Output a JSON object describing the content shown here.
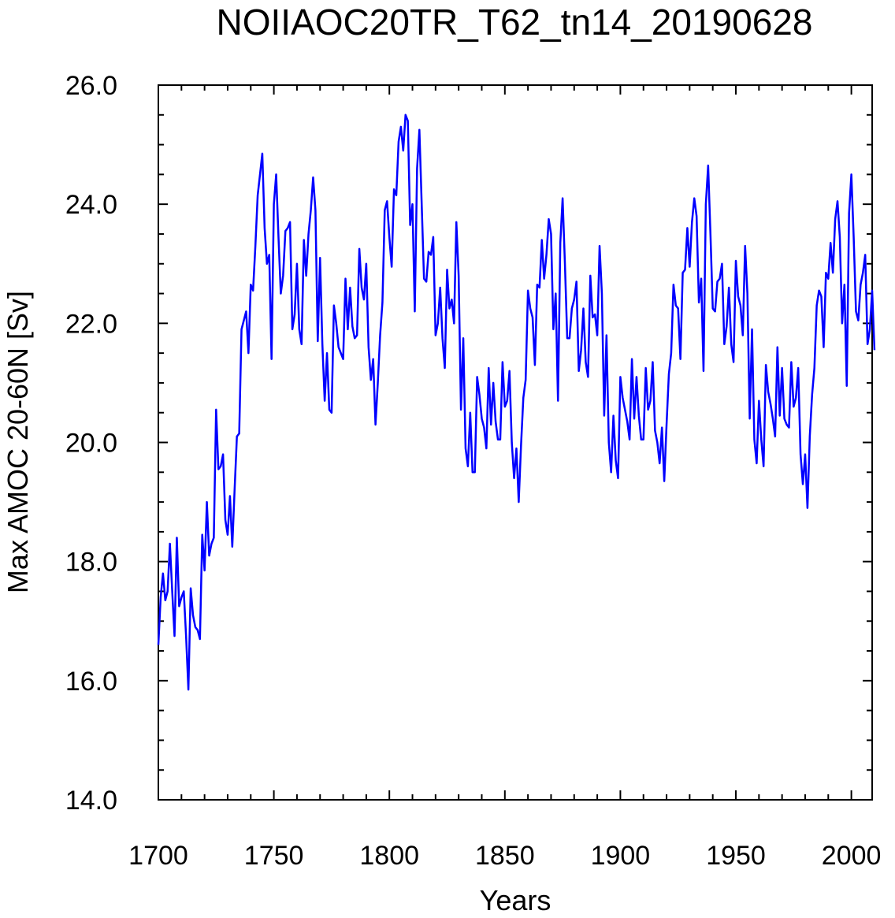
{
  "chart_data": {
    "type": "line",
    "title": "NOIIAOC20TR_T62_tn14_20190628",
    "xlabel": "Years",
    "ylabel": "Max AMOC 20-60N [Sv]",
    "xlim": [
      1700,
      2009
    ],
    "ylim": [
      14.0,
      26.0
    ],
    "x_ticks": [
      1700,
      1750,
      1800,
      1850,
      1900,
      1950,
      2000
    ],
    "x_tick_labels": [
      "1700",
      "1750",
      "1800",
      "1850",
      "1900",
      "1950",
      "2000"
    ],
    "y_ticks": [
      14,
      16,
      18,
      20,
      22,
      24,
      26
    ],
    "y_tick_labels": [
      "14.0",
      "16.0",
      "18.0",
      "20.0",
      "22.0",
      "24.0",
      "26.0"
    ],
    "x_minor_step": 10,
    "y_minor_step": 0.5,
    "grid": false,
    "series": [
      {
        "color": "#0000ff",
        "x_start": 1700,
        "x_step": 1,
        "values": [
          16.6,
          17.4,
          17.8,
          17.35,
          17.5,
          18.3,
          17.5,
          16.75,
          18.4,
          17.25,
          17.4,
          17.5,
          16.75,
          15.85,
          17.55,
          17.1,
          16.9,
          16.85,
          16.7,
          18.45,
          17.85,
          19.0,
          18.1,
          18.3,
          18.4,
          20.55,
          19.55,
          19.6,
          19.8,
          18.7,
          18.45,
          19.1,
          18.25,
          19.2,
          20.1,
          20.15,
          21.9,
          22.05,
          22.2,
          21.5,
          22.65,
          22.55,
          23.3,
          24.15,
          24.5,
          24.85,
          23.6,
          23.0,
          23.15,
          21.4,
          24.0,
          24.5,
          23.45,
          22.5,
          22.8,
          23.55,
          23.6,
          23.7,
          21.9,
          22.15,
          23.0,
          21.9,
          21.65,
          23.4,
          22.8,
          23.5,
          23.9,
          24.45,
          23.9,
          21.7,
          23.1,
          21.65,
          20.7,
          21.5,
          20.55,
          20.5,
          22.3,
          22.0,
          21.6,
          21.5,
          21.4,
          22.75,
          21.9,
          22.6,
          21.95,
          21.75,
          21.8,
          23.25,
          22.6,
          22.4,
          23.0,
          21.6,
          21.05,
          21.4,
          20.3,
          21.0,
          21.8,
          22.35,
          23.9,
          24.05,
          23.45,
          22.95,
          24.25,
          24.15,
          25.05,
          25.3,
          24.9,
          25.5,
          25.4,
          23.65,
          24.0,
          22.2,
          24.6,
          25.25,
          24.0,
          22.75,
          22.7,
          23.2,
          23.15,
          23.45,
          21.8,
          22.0,
          22.6,
          21.75,
          21.25,
          22.9,
          22.25,
          22.4,
          22.0,
          23.7,
          22.8,
          20.55,
          21.75,
          19.9,
          19.6,
          20.5,
          19.5,
          19.5,
          21.1,
          20.8,
          20.4,
          20.25,
          19.9,
          21.25,
          20.3,
          21.0,
          20.35,
          20.05,
          20.05,
          21.35,
          20.6,
          20.7,
          21.2,
          20.0,
          19.4,
          19.9,
          19.0,
          19.95,
          20.75,
          21.05,
          22.55,
          22.25,
          22.1,
          21.3,
          22.65,
          22.6,
          23.4,
          22.75,
          23.15,
          23.75,
          23.5,
          21.9,
          22.5,
          20.7,
          23.35,
          24.1,
          23.0,
          21.75,
          21.75,
          22.25,
          22.4,
          22.7,
          21.2,
          21.55,
          22.25,
          21.35,
          21.1,
          22.8,
          22.1,
          22.15,
          21.8,
          23.3,
          22.5,
          20.45,
          21.8,
          20.0,
          19.5,
          20.45,
          19.7,
          19.4,
          21.1,
          20.75,
          20.55,
          20.35,
          20.05,
          21.4,
          20.4,
          21.1,
          20.45,
          20.05,
          20.05,
          21.25,
          20.55,
          20.7,
          21.35,
          20.2,
          20.0,
          19.65,
          20.25,
          19.35,
          20.3,
          21.15,
          21.5,
          22.65,
          22.3,
          22.25,
          21.4,
          22.85,
          22.9,
          23.6,
          22.95,
          23.7,
          24.1,
          23.8,
          22.35,
          22.75,
          21.2,
          24.0,
          24.65,
          23.5,
          22.25,
          22.2,
          22.7,
          22.75,
          23.0,
          21.65,
          21.95,
          22.6,
          21.65,
          21.35,
          23.05,
          22.45,
          22.3,
          21.8,
          23.3,
          22.5,
          20.4,
          21.9,
          20.05,
          19.65,
          20.7,
          20.05,
          19.6,
          21.3,
          20.85,
          20.65,
          20.4,
          20.1,
          21.6,
          20.45,
          21.25,
          20.4,
          20.3,
          20.25,
          21.35,
          20.6,
          20.75,
          21.25,
          19.8,
          19.3,
          19.8,
          18.9,
          20.1,
          20.8,
          21.25,
          22.3,
          22.55,
          22.45,
          21.6,
          22.85,
          22.75,
          23.35,
          22.85,
          23.75,
          24.05,
          23.45,
          22.0,
          22.65,
          20.95,
          23.85,
          24.5,
          23.45,
          22.2,
          22.05,
          22.65,
          22.85,
          23.15,
          21.65,
          21.9,
          22.55,
          21.55
        ]
      }
    ]
  }
}
